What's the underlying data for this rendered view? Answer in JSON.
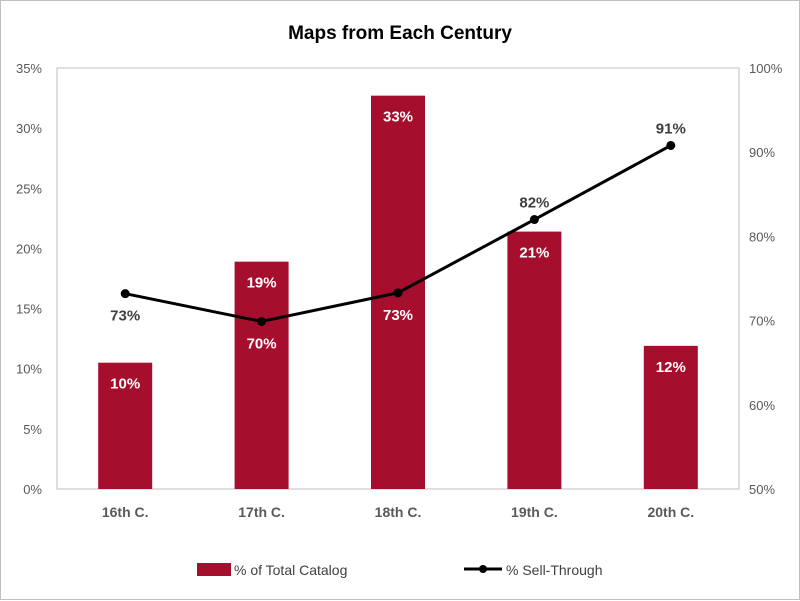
{
  "chart_data": {
    "type": "bar",
    "title": "Maps from Each Century",
    "categories": [
      "16th C.",
      "17th C.",
      "18th C.",
      "19th C.",
      "20th C."
    ],
    "series": [
      {
        "name": "% of Total Catalog",
        "type": "bar",
        "axis": "left",
        "color": "#A50E2D",
        "values": [
          10.5,
          18.9,
          32.7,
          21.4,
          11.9
        ],
        "labels": [
          "10%",
          "19%",
          "33%",
          "21%",
          "12%"
        ]
      },
      {
        "name": "% Sell-Through",
        "type": "line",
        "axis": "right",
        "color": "#000000",
        "values": [
          73.2,
          69.9,
          73.3,
          82.0,
          90.8
        ],
        "labels": [
          "73%",
          "70%",
          "73%",
          "82%",
          "91%"
        ]
      }
    ],
    "y_left": {
      "range": [
        0,
        35
      ],
      "ticks": [
        "0%",
        "5%",
        "10%",
        "15%",
        "20%",
        "25%",
        "30%",
        "35%"
      ]
    },
    "y_right": {
      "range": [
        50,
        100
      ],
      "ticks": [
        "50%",
        "60%",
        "70%",
        "80%",
        "90%",
        "100%"
      ]
    },
    "grid": false,
    "legend_position": "bottom"
  }
}
